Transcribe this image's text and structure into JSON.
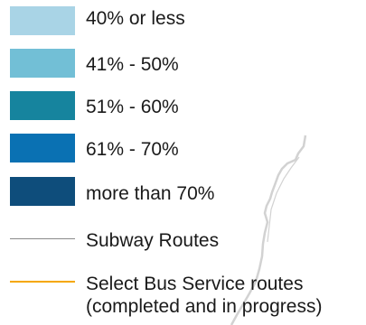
{
  "legend": {
    "items": [
      {
        "kind": "swatch",
        "label": "40% or less",
        "color": "#a9d4e6"
      },
      {
        "kind": "swatch",
        "label": "41% - 50%",
        "color": "#72bfd6"
      },
      {
        "kind": "swatch",
        "label": "51% - 60%",
        "color": "#16849e"
      },
      {
        "kind": "swatch",
        "label": "61% - 70%",
        "color": "#0a71b3"
      },
      {
        "kind": "swatch",
        "label": "more than 70%",
        "color": "#0e4d7b"
      },
      {
        "kind": "line",
        "label": "Subway Routes",
        "color": "#8a8a8a"
      },
      {
        "kind": "line",
        "label": "Select Bus Service routes",
        "label_line2": "(completed and in progress)",
        "color": "#f5a800"
      }
    ]
  },
  "map": {
    "coastline_color": "#d2d2d2"
  }
}
